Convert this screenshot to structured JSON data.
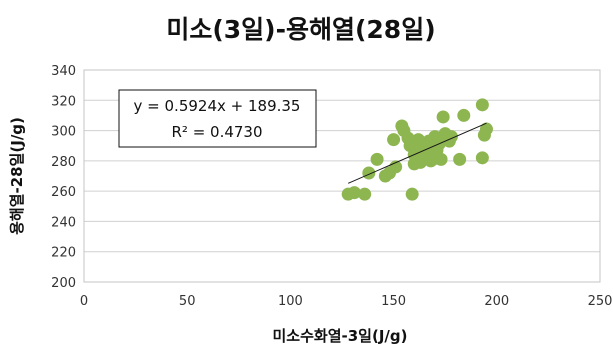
{
  "chart_data": {
    "type": "scatter",
    "title": "미소(3일)-용해열(28일)",
    "xlabel": "미소수화열-3일(J/g)",
    "ylabel": "용해열-28일(J/g)",
    "xlim": [
      0,
      250
    ],
    "ylim": [
      200,
      340
    ],
    "x_ticks": [
      "0",
      "50",
      "100",
      "150",
      "200",
      "250"
    ],
    "y_ticks": [
      "200",
      "220",
      "240",
      "260",
      "280",
      "300",
      "320",
      "340"
    ],
    "grid": "horizontal",
    "marker_color": "#8db650",
    "trendline_color": "#1a1a1a",
    "points": [
      [
        128,
        258
      ],
      [
        131,
        259
      ],
      [
        136,
        258
      ],
      [
        138,
        272
      ],
      [
        142,
        281
      ],
      [
        146,
        270
      ],
      [
        148,
        272
      ],
      [
        150,
        294
      ],
      [
        151,
        276
      ],
      [
        154,
        303
      ],
      [
        155,
        300
      ],
      [
        157,
        295
      ],
      [
        158,
        290
      ],
      [
        159,
        258
      ],
      [
        160,
        278
      ],
      [
        160,
        284
      ],
      [
        161,
        284
      ],
      [
        162,
        294
      ],
      [
        163,
        279
      ],
      [
        164,
        289
      ],
      [
        165,
        283
      ],
      [
        166,
        286
      ],
      [
        167,
        293
      ],
      [
        168,
        280
      ],
      [
        169,
        281
      ],
      [
        170,
        296
      ],
      [
        171,
        287
      ],
      [
        172,
        291
      ],
      [
        173,
        281
      ],
      [
        174,
        309
      ],
      [
        175,
        298
      ],
      [
        176,
        294
      ],
      [
        177,
        293
      ],
      [
        178,
        296
      ],
      [
        182,
        281
      ],
      [
        184,
        310
      ],
      [
        193,
        317
      ],
      [
        193,
        282
      ],
      [
        194,
        297
      ],
      [
        195,
        301
      ]
    ],
    "trendline": {
      "slope": 0.5924,
      "intercept": 189.35,
      "x_range": [
        128,
        195
      ],
      "equation": "y = 0.5924x + 189.35",
      "r_squared": "R² = 0.4730"
    }
  }
}
